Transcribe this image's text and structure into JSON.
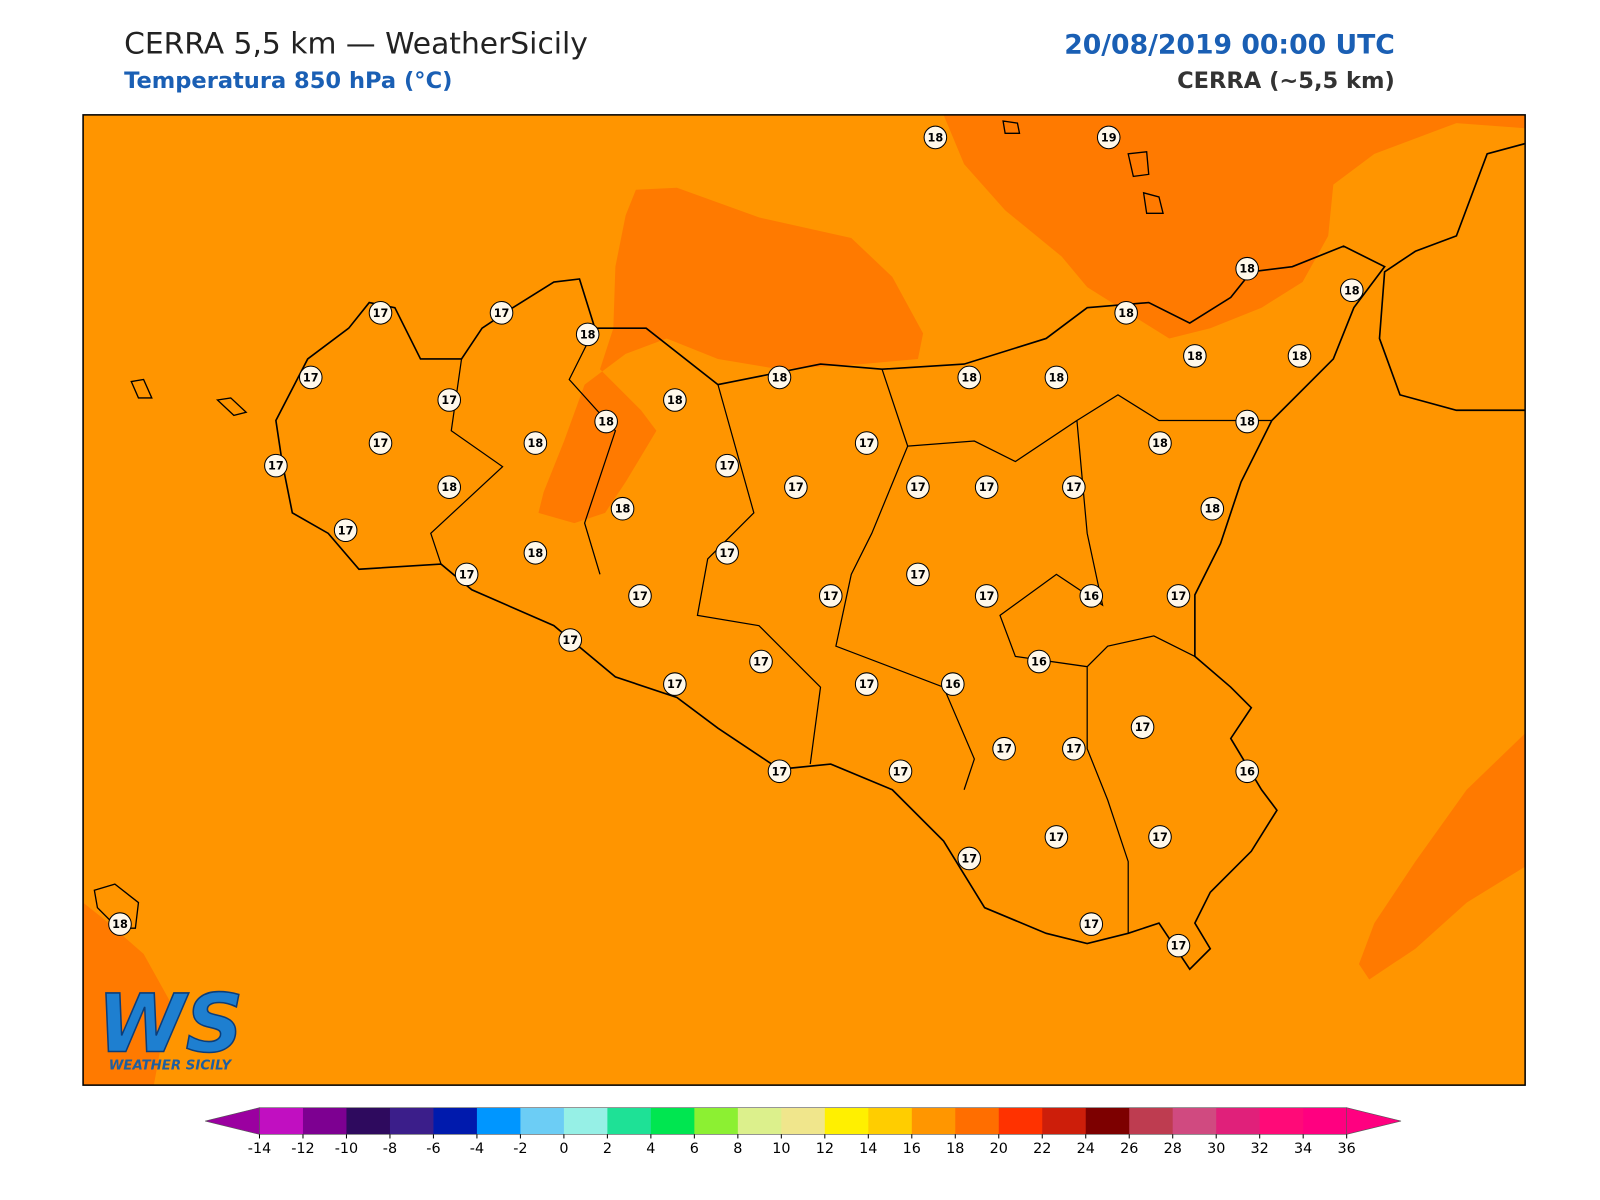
{
  "header": {
    "title": "CERRA 5,5 km — WeatherSicily",
    "subtitle": "Temperatura 850 hPa (°C)",
    "date": "20/08/2019 00:00 UTC",
    "model": "CERRA (~5,5 km)"
  },
  "logo": {
    "mark": "WS",
    "name": "WEATHER SICILY"
  },
  "stations": [
    18,
    19,
    17,
    17,
    18,
    17,
    17,
    18,
    18,
    18,
    18,
    18,
    18,
    18,
    18,
    18,
    17,
    17,
    18,
    18,
    18,
    17,
    17,
    17,
    17,
    17,
    17,
    18,
    18,
    18,
    17,
    18,
    18,
    17,
    17,
    17,
    17,
    17,
    17,
    16,
    17,
    17,
    17,
    17,
    17,
    16,
    16,
    17,
    17,
    17,
    16,
    17,
    17,
    17,
    17,
    17,
    17,
    17,
    18
  ],
  "colorbar": {
    "ticks": [
      -14,
      -12,
      -10,
      -8,
      -6,
      -4,
      -2,
      0,
      2,
      4,
      6,
      8,
      10,
      12,
      14,
      16,
      18,
      20,
      22,
      24,
      26,
      28,
      30,
      32,
      34,
      36
    ],
    "colors": [
      "#c10fc1",
      "#7d0091",
      "#2e0a5e",
      "#3b1e8a",
      "#001aad",
      "#0096ff",
      "#6ccdf5",
      "#96f0e6",
      "#1ee196",
      "#00e650",
      "#8cf032",
      "#dcf08c",
      "#f0e68c",
      "#fff000",
      "#ffcd00",
      "#ff9600",
      "#ff6e00",
      "#ff3200",
      "#cd1e0a",
      "#7d0000",
      "#be3c50",
      "#d04a80",
      "#e0207a",
      "#ff0a78",
      "#ff0080"
    ],
    "under_color": "#9b00a0",
    "over_color": "#ff0080"
  }
}
